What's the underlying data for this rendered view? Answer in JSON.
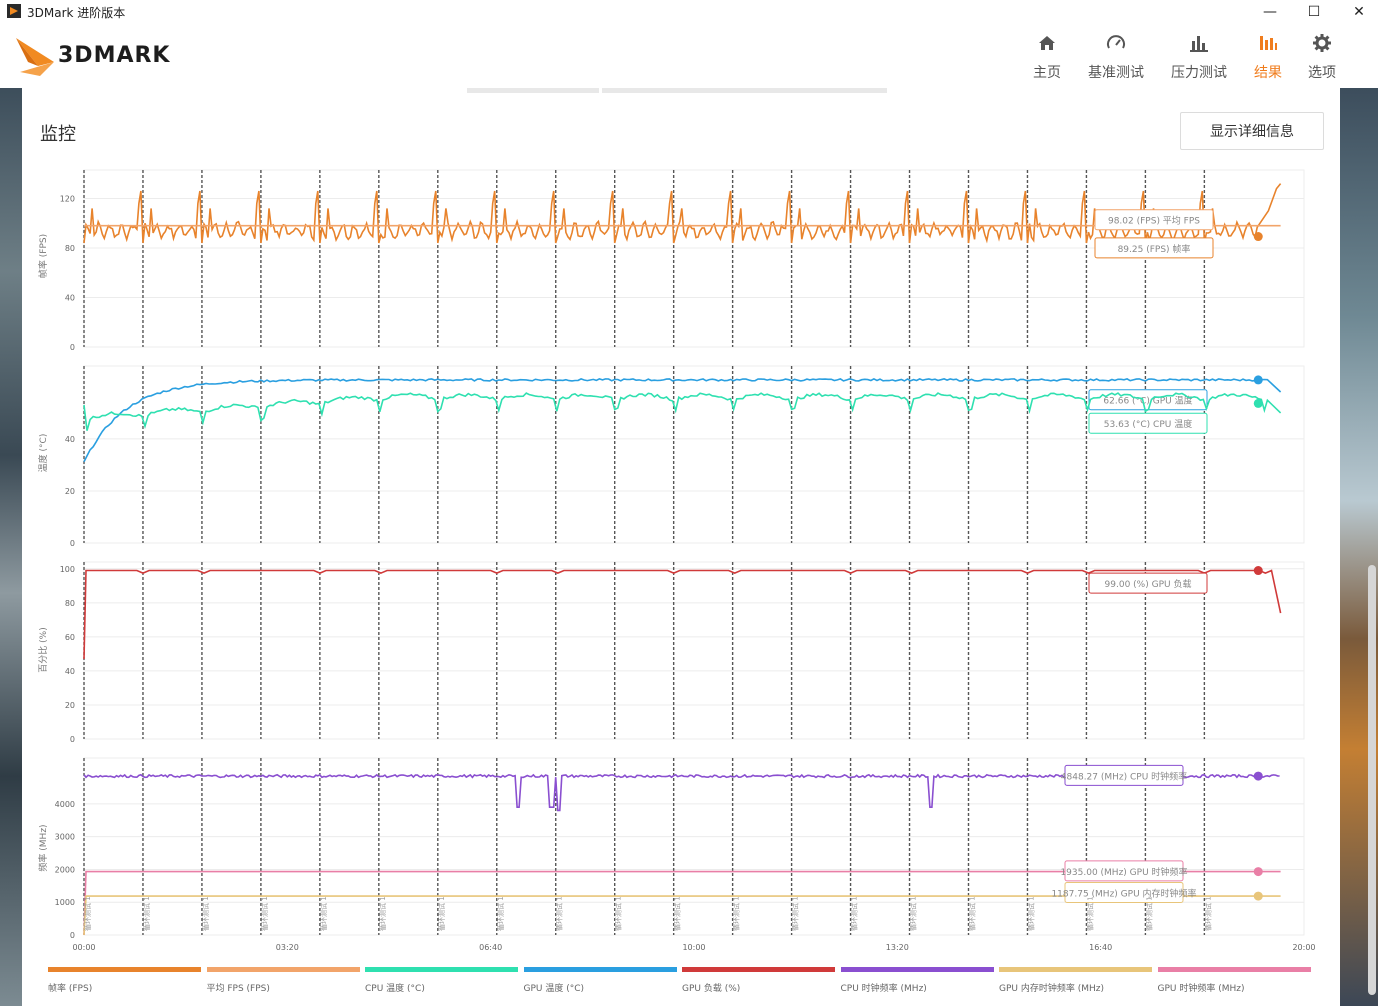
{
  "window": {
    "title": "3DMark 进阶版本",
    "minimize": "—",
    "maximize": "☐",
    "close": "✕"
  },
  "logo": {
    "text": "3DMARK"
  },
  "nav": [
    {
      "label": "主页",
      "icon": "home-icon",
      "active": false
    },
    {
      "label": "基准测试",
      "icon": "gauge-icon",
      "active": false
    },
    {
      "label": "压力测试",
      "icon": "bar-chart-icon",
      "active": false
    },
    {
      "label": "结果",
      "icon": "results-icon",
      "active": true
    },
    {
      "label": "选项",
      "icon": "gear-icon",
      "active": false
    }
  ],
  "section": {
    "title": "监控",
    "details_button": "显示详细信息"
  },
  "colors": {
    "accent": "#f07d1e",
    "fps": "#e8832c",
    "avg_fps": "#f2a46a",
    "cpu_temp": "#2fe0b0",
    "gpu_temp": "#2a9fe0",
    "gpu_load": "#d03a3a",
    "cpu_clock": "#8a4fd0",
    "gpu_mem_clock": "#e8c57a",
    "gpu_clock": "#e97fa6"
  },
  "chart_data": {
    "type": "line",
    "x_unit": "mm:ss",
    "xlim": [
      0,
      1200
    ],
    "x_ticks": [
      "00:00",
      "03:20",
      "06:40",
      "10:00",
      "13:20",
      "16:40",
      "20:00"
    ],
    "markers": {
      "label": "循环测试 1",
      "count": 20,
      "interval_s": 58
    },
    "panels": [
      {
        "ylabel": "帧率 (FPS)",
        "yticks": [
          0,
          40,
          80,
          120
        ],
        "ylim": [
          0,
          143
        ],
        "series": [
          {
            "name": "帧率 (FPS)",
            "key": "fps",
            "last": 89.25,
            "badge": "89.25 (FPS) 帧率"
          },
          {
            "name": "平均 FPS (FPS)",
            "key": "avg_fps",
            "constant": 98.02,
            "badge": "98.02 (FPS) 平均 FPS"
          }
        ]
      },
      {
        "ylabel": "温度 (°C)",
        "yticks": [
          0,
          20,
          40
        ],
        "ylim": [
          0,
          68
        ],
        "series": [
          {
            "name": "GPU 温度 (°C)",
            "key": "gpu_temp",
            "start": 31,
            "last": 62.66,
            "badge": "62.66 (°C) GPU 温度"
          },
          {
            "name": "CPU 温度 (°C)",
            "key": "cpu_temp",
            "start": 53,
            "last": 53.63,
            "badge": "53.63 (°C) CPU 温度"
          }
        ]
      },
      {
        "ylabel": "百分比 (%)",
        "yticks": [
          0,
          20,
          40,
          60,
          80,
          100
        ],
        "ylim": [
          0,
          104
        ],
        "series": [
          {
            "name": "GPU 负载 (%)",
            "key": "gpu_load",
            "start": 47,
            "plateau": 99,
            "end": 74,
            "last": 99.0,
            "badge": "99.00 (%) GPU 负载"
          }
        ]
      },
      {
        "ylabel": "频率 (MHz)",
        "yticks": [
          0,
          1000,
          2000,
          3000,
          4000
        ],
        "ylim": [
          0,
          5400
        ],
        "series": [
          {
            "name": "CPU 时钟频率 (MHz)",
            "key": "cpu_clock",
            "plateau": 4848.27,
            "dips": [
              [
                427,
                3900
              ],
              [
                460,
                3900
              ],
              [
                467,
                3800
              ],
              [
                833,
                3900
              ]
            ],
            "last": 4848.27,
            "badge": "4848.27 (MHz) CPU 时钟频率"
          },
          {
            "name": "GPU 时钟频率 (MHz)",
            "key": "gpu_clock",
            "plateau": 1935.0,
            "last": 1935.0,
            "badge": "1935.00 (MHz) GPU 时钟频率"
          },
          {
            "name": "GPU 内存时钟频率 (MHz)",
            "key": "gpu_mem_clock",
            "plateau": 1187.75,
            "last": 1187.75,
            "badge": "1187.75 (MHz) GPU 内存时钟频率"
          }
        ]
      }
    ],
    "legend": [
      {
        "label": "帧率 (FPS)",
        "key": "fps"
      },
      {
        "label": "平均 FPS (FPS)",
        "key": "avg_fps"
      },
      {
        "label": "CPU 温度 (°C)",
        "key": "cpu_temp"
      },
      {
        "label": "GPU 温度 (°C)",
        "key": "gpu_temp"
      },
      {
        "label": "GPU 负载 (%)",
        "key": "gpu_load"
      },
      {
        "label": "CPU 时钟频率 (MHz)",
        "key": "cpu_clock"
      },
      {
        "label": "GPU 内存时钟频率 (MHz)",
        "key": "gpu_mem_clock"
      },
      {
        "label": "GPU 时钟频率 (MHz)",
        "key": "gpu_clock"
      }
    ]
  }
}
